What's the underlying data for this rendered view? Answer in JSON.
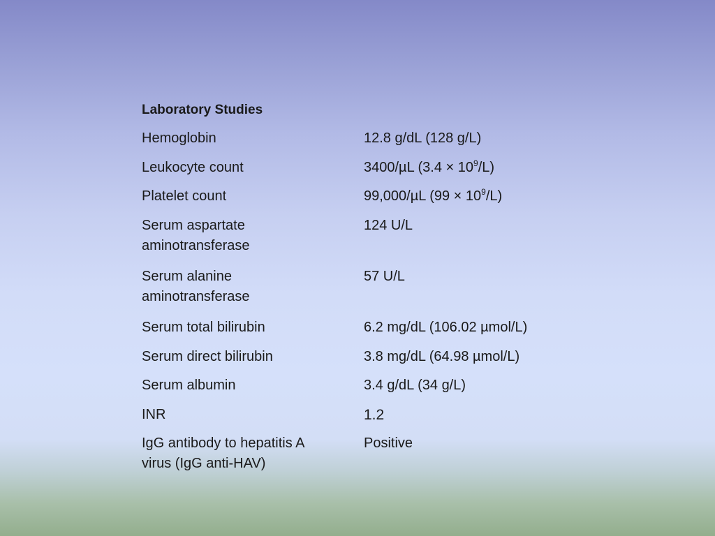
{
  "heading": "Laboratory Studies",
  "rows": [
    {
      "label": "Hemoglobin",
      "value": "12.8 g/dL (128 g/L)"
    },
    {
      "label": "Leukocyte count",
      "value_pre": "3400/µL (3.4 × 10",
      "value_sup": "9",
      "value_post": "/L)"
    },
    {
      "label": "Platelet count",
      "value_pre": "99,000/µL (99 × 10",
      "value_sup": "9",
      "value_post": "/L)"
    },
    {
      "label_line1": "Serum aspartate",
      "label_line2": "aminotransferase",
      "value": "124 U/L"
    },
    {
      "label_line1": "Serum alanine",
      "label_line2": "aminotransferase",
      "value": "57 U/L"
    },
    {
      "label": "Serum total bilirubin",
      "value": "6.2 mg/dL (106.02 µmol/L)"
    },
    {
      "label": "Serum direct bilirubin",
      "value": "3.8 mg/dL (64.98 µmol/L)"
    },
    {
      "label": "Serum albumin",
      "value": "3.4 g/dL (34 g/L)"
    },
    {
      "label": "INR",
      "value": "1.2"
    },
    {
      "label_line1": "IgG antibody to hepatitis A",
      "label_line2": "virus (IgG anti-HAV)",
      "value": "Positive"
    }
  ]
}
